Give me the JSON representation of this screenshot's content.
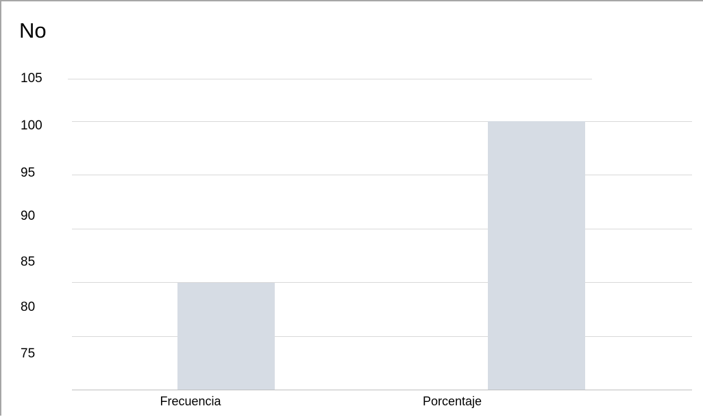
{
  "chart_data": {
    "type": "bar",
    "title": "No",
    "xlabel": "",
    "ylabel": "",
    "categories": [
      "Frecuencia",
      "Porcentaje"
    ],
    "values": [
      85,
      100
    ],
    "ylim": [
      70,
      105
    ],
    "yticks": [
      "75",
      "80",
      "85",
      "90",
      "95",
      "100",
      "105"
    ],
    "grid": true,
    "legend": "none",
    "bar_color": "#d6dce4",
    "grid_color": "#d9d9d9",
    "frame_color": "#a6a6a6"
  }
}
